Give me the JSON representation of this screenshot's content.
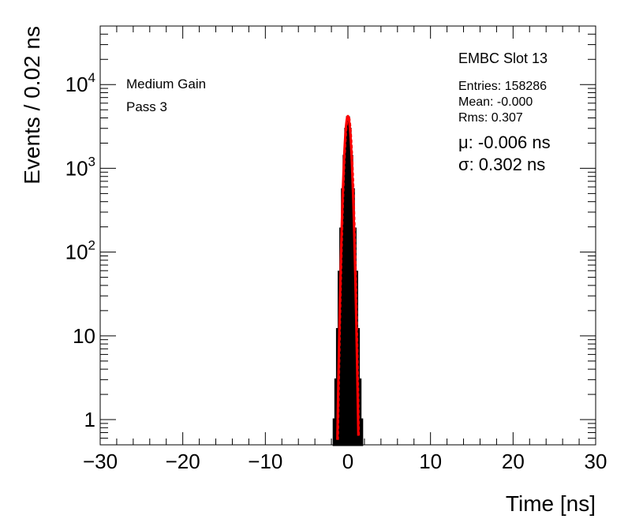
{
  "chart_data": {
    "type": "histogram",
    "xlabel": "Time [ns]",
    "ylabel": "Events / 0.02 ns",
    "xlim": [
      -30,
      30
    ],
    "ylim": [
      0.5,
      50000
    ],
    "y_scale": "log",
    "x_ticks": [
      -30,
      -20,
      -10,
      0,
      10,
      20,
      30
    ],
    "x_tick_labels": [
      "−30",
      "−20",
      "−10",
      "0",
      "10",
      "20",
      "30"
    ],
    "y_ticks": [
      1,
      10,
      100,
      1000,
      10000
    ],
    "y_tick_labels": [
      {
        "base": "1",
        "exp": ""
      },
      {
        "base": "10",
        "exp": ""
      },
      {
        "base": "10",
        "exp": "2"
      },
      {
        "base": "10",
        "exp": "3"
      },
      {
        "base": "10",
        "exp": "4"
      }
    ],
    "histogram": {
      "name": "EMBC Slot 13",
      "color": "#000000",
      "x": [
        -1.6,
        -1.4,
        -1.2,
        -1.0,
        -0.8,
        -0.6,
        -0.4,
        -0.2,
        0.0,
        0.2,
        0.4,
        0.6,
        0.8,
        1.0,
        1.2,
        1.4,
        1.6
      ],
      "values": [
        1,
        3,
        12,
        58,
        190,
        560,
        1400,
        2950,
        4050,
        2950,
        1400,
        560,
        190,
        58,
        12,
        3,
        1
      ]
    },
    "fit": {
      "function": "gaussian",
      "color": "#ff0000",
      "mean": -0.006,
      "sigma": 0.302,
      "peak": 4200,
      "x_range": [
        -1.4,
        1.4
      ]
    },
    "stats": {
      "title": "EMBC Slot 13",
      "entries": "Entries: 158286",
      "mean": "Mean: -0.000",
      "rms": "Rms: 0.307",
      "mu": "μ: -0.006 ns",
      "sigma": "σ: 0.302 ns"
    },
    "labels": {
      "gain": "Medium Gain",
      "pass": "Pass 3"
    }
  }
}
